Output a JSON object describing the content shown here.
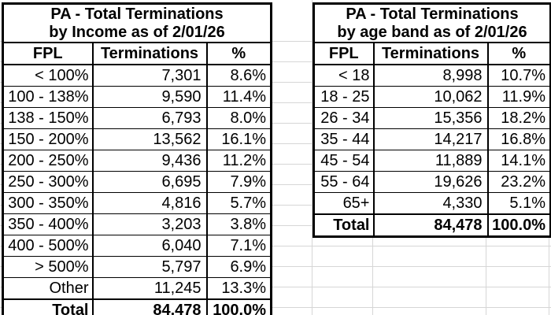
{
  "colors": {
    "gridline": "#d6d6d6",
    "table_border": "#000000",
    "text": "#000000",
    "background": "#ffffff"
  },
  "left_table": {
    "title_line1": "PA - Total Terminations",
    "title_line2": "by Income as of 2/01/26",
    "columns": [
      "FPL",
      "Terminations",
      "%"
    ],
    "rows": [
      {
        "label": "< 100%",
        "terminations": "7,301",
        "pct": "8.6%"
      },
      {
        "label": "100 - 138%",
        "terminations": "9,590",
        "pct": "11.4%"
      },
      {
        "label": "138 - 150%",
        "terminations": "6,793",
        "pct": "8.0%"
      },
      {
        "label": "150 - 200%",
        "terminations": "13,562",
        "pct": "16.1%"
      },
      {
        "label": "200 - 250%",
        "terminations": "9,436",
        "pct": "11.2%"
      },
      {
        "label": "250 - 300%",
        "terminations": "6,695",
        "pct": "7.9%"
      },
      {
        "label": "300 - 350%",
        "terminations": "4,816",
        "pct": "5.7%"
      },
      {
        "label": "350 - 400%",
        "terminations": "3,203",
        "pct": "3.8%"
      },
      {
        "label": "400 - 500%",
        "terminations": "6,040",
        "pct": "7.1%"
      },
      {
        "label": "> 500%",
        "terminations": "5,797",
        "pct": "6.9%"
      },
      {
        "label": "Other",
        "terminations": "11,245",
        "pct": "13.3%"
      }
    ],
    "total": {
      "label": "Total",
      "terminations": "84,478",
      "pct": "100.0%"
    }
  },
  "right_table": {
    "title_line1": "PA - Total Terminations",
    "title_line2": "by age band as of 2/01/26",
    "columns": [
      "FPL",
      "Terminations",
      "%"
    ],
    "rows": [
      {
        "label": "< 18",
        "terminations": "8,998",
        "pct": "10.7%"
      },
      {
        "label": "18 - 25",
        "terminations": "10,062",
        "pct": "11.9%"
      },
      {
        "label": "26 - 34",
        "terminations": "15,356",
        "pct": "18.2%"
      },
      {
        "label": "35 - 44",
        "terminations": "14,217",
        "pct": "16.8%"
      },
      {
        "label": "45 - 54",
        "terminations": "11,889",
        "pct": "14.1%"
      },
      {
        "label": "55 - 64",
        "terminations": "19,626",
        "pct": "23.2%"
      },
      {
        "label": "65+",
        "terminations": "4,330",
        "pct": "5.1%"
      }
    ],
    "total": {
      "label": "Total",
      "terminations": "84,478",
      "pct": "100.0%"
    }
  }
}
